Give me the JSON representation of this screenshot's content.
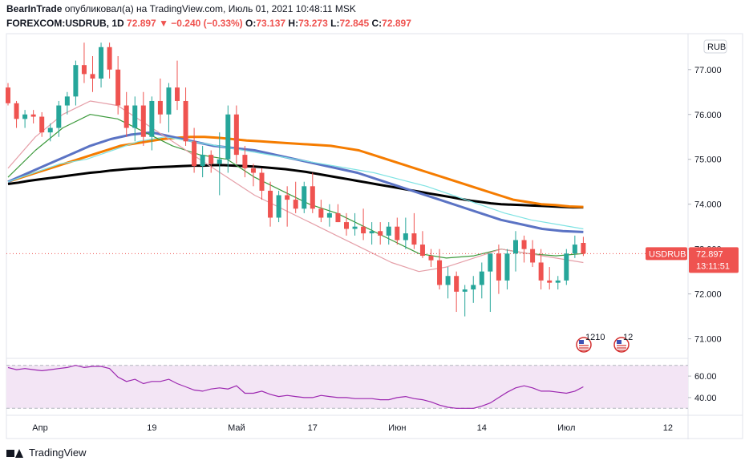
{
  "header": {
    "publisher": "BearInTrade",
    "published_text": "опубликовал(а) на TradingView.com, Июль 01, 2021 10:48:11 MSK",
    "symbol": "FOREXCOM:USDRUB, 1D",
    "last": "72.897",
    "change": "▼ −0.240 (−0.33%)",
    "open_label": "O:",
    "open": "73.137",
    "high_label": "H:",
    "high": "73.273",
    "low_label": "L:",
    "low": "72.845",
    "close_label": "C:",
    "close": "72.897"
  },
  "currency_label": "RUB",
  "price_tag": {
    "symbol": "USDRUB",
    "price": "72.897",
    "countdown": "13:11:51"
  },
  "footer": {
    "brand": "TradingView"
  },
  "colors": {
    "up": "#26a69a",
    "down": "#ef5350",
    "ma_black": "#000000",
    "ma_orange": "#f57c00",
    "ma_blue": "#5b73c4",
    "ma_cyan": "#7fe3e3",
    "ma_green": "#3c9a3c",
    "ma_pink": "#e59fa8",
    "rsi_line": "#9c27b0",
    "rsi_band": "#f3e5f5"
  },
  "events": [
    {
      "label": "1210",
      "icon": "us-flag-icon"
    },
    {
      "label": "12",
      "icon": "us-flag-icon"
    }
  ],
  "chart_data": [
    {
      "type": "candlestick",
      "yaxis_ticks": [
        "77.000",
        "76.000",
        "75.000",
        "74.000",
        "73.000",
        "72.000",
        "71.000"
      ],
      "ylim": [
        70.6,
        77.8
      ],
      "xaxis_ticks": [
        "Апр",
        "19",
        "Май",
        "17",
        "Июн",
        "14",
        "Июл",
        "12"
      ],
      "candles": [
        [
          76.6,
          76.7,
          76.2,
          76.25
        ],
        [
          76.25,
          76.3,
          75.7,
          75.9
        ],
        [
          75.9,
          76.1,
          75.7,
          76.0
        ],
        [
          76.0,
          76.1,
          75.8,
          75.95
        ],
        [
          75.95,
          76.05,
          75.5,
          75.6
        ],
        [
          75.6,
          75.8,
          75.4,
          75.7
        ],
        [
          75.7,
          76.3,
          75.5,
          76.2
        ],
        [
          76.2,
          76.5,
          76.0,
          76.4
        ],
        [
          76.4,
          77.2,
          76.2,
          77.1
        ],
        [
          77.1,
          77.6,
          76.7,
          76.9
        ],
        [
          76.9,
          77.3,
          76.5,
          76.8
        ],
        [
          76.8,
          77.6,
          76.6,
          77.5
        ],
        [
          77.5,
          77.6,
          76.8,
          77.0
        ],
        [
          77.0,
          77.3,
          76.0,
          76.2
        ],
        [
          76.2,
          76.5,
          75.5,
          75.7
        ],
        [
          75.7,
          76.4,
          75.4,
          76.2
        ],
        [
          76.2,
          76.5,
          75.3,
          75.5
        ],
        [
          75.5,
          76.4,
          75.2,
          76.3
        ],
        [
          76.3,
          76.8,
          75.8,
          76.0
        ],
        [
          76.0,
          76.7,
          75.6,
          76.6
        ],
        [
          76.6,
          77.2,
          76.1,
          76.3
        ],
        [
          76.3,
          76.6,
          75.3,
          75.4
        ],
        [
          75.4,
          75.7,
          74.7,
          74.85
        ],
        [
          74.85,
          75.3,
          74.6,
          75.1
        ],
        [
          75.1,
          75.2,
          74.7,
          74.9
        ],
        [
          74.9,
          75.6,
          74.2,
          75.0
        ],
        [
          75.0,
          76.2,
          74.7,
          76.0
        ],
        [
          76.0,
          76.2,
          74.9,
          75.1
        ],
        [
          75.1,
          75.3,
          74.6,
          74.8
        ],
        [
          74.8,
          74.9,
          74.4,
          74.7
        ],
        [
          74.7,
          74.8,
          74.1,
          74.3
        ],
        [
          74.3,
          74.5,
          73.5,
          73.7
        ],
        [
          73.7,
          74.3,
          73.6,
          74.2
        ],
        [
          74.2,
          74.4,
          73.5,
          74.1
        ],
        [
          74.1,
          74.5,
          73.8,
          73.9
        ],
        [
          73.9,
          74.5,
          73.8,
          74.4
        ],
        [
          74.4,
          74.7,
          73.8,
          73.9
        ],
        [
          73.9,
          74.1,
          73.6,
          73.7
        ],
        [
          73.7,
          74.0,
          73.5,
          73.8
        ],
        [
          73.8,
          74.0,
          73.6,
          73.6
        ],
        [
          73.6,
          73.8,
          73.3,
          73.45
        ],
        [
          73.45,
          73.8,
          73.3,
          73.5
        ],
        [
          73.5,
          73.9,
          73.2,
          73.35
        ],
        [
          73.35,
          73.6,
          73.1,
          73.4
        ],
        [
          73.4,
          73.6,
          73.1,
          73.3
        ],
        [
          73.3,
          73.6,
          73.1,
          73.5
        ],
        [
          73.5,
          73.7,
          73.1,
          73.2
        ],
        [
          73.2,
          73.7,
          73.0,
          73.35
        ],
        [
          73.35,
          73.8,
          73.0,
          73.1
        ],
        [
          73.1,
          73.4,
          72.8,
          72.85
        ],
        [
          72.85,
          73.0,
          72.6,
          72.75
        ],
        [
          72.75,
          73.0,
          72.1,
          72.2
        ],
        [
          72.2,
          72.6,
          71.9,
          72.4
        ],
        [
          72.4,
          72.5,
          71.6,
          72.05
        ],
        [
          72.05,
          72.2,
          71.5,
          72.1
        ],
        [
          72.1,
          72.4,
          71.8,
          72.2
        ],
        [
          72.2,
          72.7,
          71.9,
          72.5
        ],
        [
          72.5,
          72.9,
          71.6,
          72.9
        ],
        [
          72.9,
          73.1,
          72.0,
          72.3
        ],
        [
          72.3,
          73.0,
          72.1,
          72.9
        ],
        [
          72.9,
          73.4,
          72.5,
          73.2
        ],
        [
          73.2,
          73.3,
          72.7,
          73.0
        ],
        [
          73.0,
          73.2,
          72.6,
          72.7
        ],
        [
          72.7,
          73.0,
          72.1,
          72.3
        ],
        [
          72.3,
          72.6,
          72.1,
          72.25
        ],
        [
          72.25,
          72.4,
          72.1,
          72.3
        ],
        [
          72.3,
          73.0,
          72.2,
          72.9
        ],
        [
          72.9,
          73.3,
          72.8,
          73.1
        ],
        [
          73.137,
          73.273,
          72.845,
          72.897
        ]
      ],
      "series": [
        {
          "color": "#000000",
          "values": [
            74.45,
            74.48,
            74.52,
            74.55,
            74.58,
            74.61,
            74.64,
            74.67,
            74.7,
            74.72,
            74.75,
            74.77,
            74.79,
            74.8,
            74.82,
            74.83,
            74.84,
            74.85,
            74.86,
            74.86,
            74.87,
            74.87,
            74.86,
            74.85,
            74.84,
            74.82,
            74.8,
            74.78,
            74.75,
            74.72,
            74.68,
            74.64,
            74.6,
            74.56,
            74.52,
            74.48,
            74.44,
            74.4,
            74.36,
            74.32,
            74.28,
            74.24,
            74.2,
            74.16,
            74.12,
            74.08,
            74.05,
            74.02,
            74.0,
            73.99,
            73.98,
            73.97,
            73.96,
            73.95,
            73.94,
            73.93,
            73.93
          ]
        },
        {
          "color": "#f57c00",
          "values": [
            74.5,
            74.6,
            74.7,
            74.8,
            74.9,
            75.0,
            75.1,
            75.2,
            75.3,
            75.35,
            75.4,
            75.45,
            75.48,
            75.5,
            75.5,
            75.48,
            75.45,
            75.42,
            75.4,
            75.38,
            75.36,
            75.34,
            75.32,
            75.3,
            75.25,
            75.2,
            75.1,
            75.0,
            74.9,
            74.8,
            74.7,
            74.6,
            74.5,
            74.4,
            74.3,
            74.2,
            74.1,
            74.05,
            74.0,
            73.98,
            73.95,
            73.94
          ]
        },
        {
          "color": "#5b73c4",
          "values": [
            74.5,
            74.7,
            74.9,
            75.1,
            75.3,
            75.45,
            75.55,
            75.6,
            75.5,
            75.4,
            75.3,
            75.25,
            75.2,
            75.1,
            75.0,
            74.9,
            74.8,
            74.7,
            74.55,
            74.4,
            74.25,
            74.1,
            73.95,
            73.8,
            73.65,
            73.55,
            73.45,
            73.4,
            73.38
          ]
        },
        {
          "color": "#7fe3e3",
          "values": [
            74.5,
            74.7,
            74.9,
            75.0,
            75.2,
            75.4,
            75.5,
            75.4,
            75.3,
            75.2,
            75.1,
            75.0,
            74.9,
            74.8,
            74.7,
            74.55,
            74.4,
            74.2,
            74.0,
            73.8,
            73.65,
            73.55,
            73.45
          ]
        },
        {
          "color": "#3c9a3c",
          "values": [
            74.6,
            75.2,
            75.7,
            76.0,
            75.9,
            75.6,
            75.3,
            75.1,
            75.0,
            74.6,
            74.3,
            74.0,
            73.8,
            73.5,
            73.2,
            72.9,
            72.8,
            72.85,
            73.0,
            72.9,
            72.85,
            72.9
          ]
        },
        {
          "color": "#e59fa8",
          "values": [
            74.8,
            75.5,
            76.0,
            76.3,
            76.2,
            75.8,
            75.4,
            75.0,
            74.6,
            74.2,
            73.9,
            73.6,
            73.3,
            73.0,
            72.7,
            72.5,
            72.6,
            72.8,
            73.0,
            72.9,
            72.8,
            72.7
          ]
        }
      ]
    },
    {
      "type": "line",
      "name": "RSI",
      "yaxis_ticks": [
        "60.00",
        "40.00"
      ],
      "ylim": [
        25,
        75
      ],
      "band": [
        30,
        70
      ],
      "values": [
        68,
        66,
        67,
        66,
        65,
        66,
        67,
        68,
        70,
        68,
        69,
        69,
        67,
        59,
        55,
        57,
        53,
        55,
        55,
        57,
        53,
        50,
        47,
        46,
        48,
        49,
        48,
        51,
        44,
        44,
        46,
        43,
        41,
        42,
        41,
        40,
        40,
        42,
        41,
        40,
        40,
        39,
        39,
        39,
        38,
        38,
        40,
        41,
        39,
        38,
        36,
        33,
        31,
        30,
        30,
        30,
        32,
        35,
        40,
        45,
        49,
        51,
        49,
        46,
        46,
        45,
        44,
        46,
        50
      ]
    }
  ]
}
